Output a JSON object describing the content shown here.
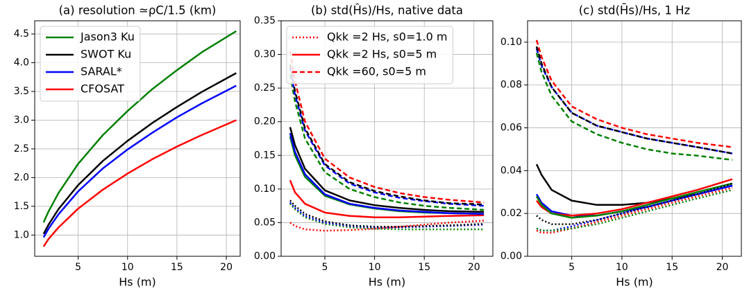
{
  "chart_data": [
    {
      "type": "line",
      "title": "(a) resolution  ≃ρC/1.5 (km)",
      "xlabel": "Hs (m)",
      "x": [
        1.5,
        2,
        3,
        5,
        7.5,
        10,
        12.5,
        15,
        17.5,
        21
      ],
      "xlim": [
        0.6,
        21.4
      ],
      "xticks": [
        5,
        10,
        15,
        20
      ],
      "ylim": [
        0.63,
        4.73
      ],
      "yticks": [
        {
          "value": 1,
          "label": "1.0"
        },
        1.5,
        {
          "value": 2,
          "label": "2.0"
        },
        2.5,
        {
          "value": 3,
          "label": "3.0"
        },
        3.5,
        {
          "value": 4,
          "label": "4.0"
        },
        4.5
      ],
      "grid": true,
      "legend": "upper left",
      "series": [
        {
          "name": "Jason3  Ku",
          "color": "#008000",
          "dash": "solid",
          "values": [
            1.22,
            1.41,
            1.73,
            2.24,
            2.74,
            3.16,
            3.54,
            3.87,
            4.18,
            4.55
          ]
        },
        {
          "name": "SWOT  Ku",
          "color": "#000000",
          "dash": "solid",
          "values": [
            1.02,
            1.18,
            1.45,
            1.87,
            2.29,
            2.64,
            2.95,
            3.23,
            3.49,
            3.82
          ]
        },
        {
          "name": "SARAL*",
          "color": "#0000ff",
          "dash": "solid",
          "values": [
            0.96,
            1.11,
            1.36,
            1.76,
            2.16,
            2.49,
            2.78,
            3.05,
            3.29,
            3.6
          ]
        },
        {
          "name": "CFOSAT",
          "color": "#ff0000",
          "dash": "solid",
          "values": [
            0.8,
            0.93,
            1.13,
            1.46,
            1.79,
            2.07,
            2.32,
            2.54,
            2.74,
            3.0
          ]
        }
      ]
    },
    {
      "type": "line",
      "title": "(b) std(Ĥs)/Hs, native data",
      "xlabel": "Hs (m)",
      "x": [
        1.5,
        2,
        3,
        5,
        7.5,
        10,
        12.5,
        15,
        17.5,
        21
      ],
      "xlim": [
        0.6,
        21.9
      ],
      "xticks": [
        5,
        10,
        15,
        20
      ],
      "ylim": [
        0,
        0.35
      ],
      "yticks": [
        {
          "value": 0,
          "label": "0.00"
        },
        0.05,
        {
          "value": 0.1,
          "label": "0.10"
        },
        0.15,
        {
          "value": 0.2,
          "label": "0.20"
        },
        0.25,
        {
          "value": 0.3,
          "label": "0.30"
        },
        0.35
      ],
      "grid": true,
      "legend": "upper left",
      "series": [
        {
          "name": "Qkk =2 Hs, s0=1.0 m",
          "color": "#ff0000",
          "dash": "dotted",
          "values": [
            0.05,
            0.045,
            0.04,
            0.038,
            0.039,
            0.041,
            0.044,
            0.047,
            0.05,
            0.053
          ]
        },
        {
          "name": "Qkk =2 Hs, s0=5 m",
          "color": "#ff0000",
          "dash": "solid",
          "values": [
            0.113,
            0.095,
            0.078,
            0.065,
            0.06,
            0.058,
            0.058,
            0.059,
            0.06,
            0.061
          ]
        },
        {
          "name": "Qkk =60, s0=5 m",
          "color": "#ff0000",
          "dash": "dashed",
          "values": [
            0.305,
            0.26,
            0.2,
            0.145,
            0.117,
            0.103,
            0.094,
            0.088,
            0.084,
            0.08
          ]
        },
        {
          "color": "#008000",
          "dash": "dashed",
          "values": [
            0.27,
            0.23,
            0.175,
            0.125,
            0.1,
            0.088,
            0.08,
            0.075,
            0.072,
            0.069
          ]
        },
        {
          "color": "#0000ff",
          "dash": "dashed",
          "values": [
            0.28,
            0.24,
            0.187,
            0.135,
            0.108,
            0.095,
            0.087,
            0.082,
            0.078,
            0.075
          ]
        },
        {
          "color": "#000000",
          "dash": "dashed",
          "values": [
            0.285,
            0.245,
            0.19,
            0.137,
            0.11,
            0.097,
            0.089,
            0.083,
            0.079,
            0.077
          ]
        },
        {
          "color": "#008000",
          "dash": "solid",
          "values": [
            0.178,
            0.15,
            0.118,
            0.09,
            0.077,
            0.071,
            0.067,
            0.065,
            0.064,
            0.063
          ]
        },
        {
          "color": "#0000ff",
          "dash": "solid",
          "values": [
            0.183,
            0.155,
            0.122,
            0.092,
            0.078,
            0.072,
            0.068,
            0.066,
            0.064,
            0.063
          ]
        },
        {
          "color": "#000000",
          "dash": "solid",
          "values": [
            0.192,
            0.165,
            0.13,
            0.098,
            0.083,
            0.076,
            0.072,
            0.069,
            0.067,
            0.066
          ]
        },
        {
          "color": "#008000",
          "dash": "dotted",
          "values": [
            0.078,
            0.07,
            0.058,
            0.048,
            0.043,
            0.041,
            0.04,
            0.04,
            0.04,
            0.04
          ]
        },
        {
          "color": "#0000ff",
          "dash": "dotted",
          "values": [
            0.08,
            0.072,
            0.06,
            0.05,
            0.045,
            0.043,
            0.043,
            0.044,
            0.045,
            0.047
          ]
        },
        {
          "color": "#000000",
          "dash": "dotted",
          "values": [
            0.083,
            0.075,
            0.063,
            0.052,
            0.046,
            0.044,
            0.044,
            0.045,
            0.046,
            0.048
          ]
        }
      ]
    },
    {
      "type": "line",
      "title": "(c) std(H̄s)/Hs, 1 Hz",
      "xlabel": "Hs (m)",
      "x": [
        1.5,
        2,
        3,
        5,
        7.5,
        10,
        12.5,
        15,
        17.5,
        21
      ],
      "xlim": [
        0.6,
        21.9
      ],
      "xticks": [
        5,
        10,
        15,
        20
      ],
      "ylim": [
        0,
        0.11
      ],
      "yticks": [
        {
          "value": 0,
          "label": "0.00"
        },
        0.02,
        0.04,
        0.06,
        0.08,
        {
          "value": 0.1,
          "label": "0.10"
        }
      ],
      "grid": true,
      "series": [
        {
          "color": "#ff0000",
          "dash": "dashed",
          "values": [
            0.101,
            0.093,
            0.082,
            0.07,
            0.064,
            0.06,
            0.057,
            0.055,
            0.053,
            0.051
          ]
        },
        {
          "color": "#0000ff",
          "dash": "dashed",
          "values": [
            0.097,
            0.089,
            0.079,
            0.067,
            0.061,
            0.058,
            0.055,
            0.053,
            0.051,
            0.048
          ]
        },
        {
          "color": "#000000",
          "dash": "dashed",
          "values": [
            0.098,
            0.09,
            0.079,
            0.067,
            0.061,
            0.058,
            0.055,
            0.053,
            0.051,
            0.048
          ]
        },
        {
          "color": "#008000",
          "dash": "dashed",
          "values": [
            0.095,
            0.086,
            0.075,
            0.063,
            0.057,
            0.053,
            0.05,
            0.048,
            0.047,
            0.045
          ]
        },
        {
          "color": "#000000",
          "dash": "solid",
          "values": [
            0.043,
            0.038,
            0.031,
            0.026,
            0.024,
            0.024,
            0.025,
            0.027,
            0.029,
            0.033
          ]
        },
        {
          "color": "#0000ff",
          "dash": "solid",
          "values": [
            0.029,
            0.025,
            0.021,
            0.019,
            0.019,
            0.021,
            0.023,
            0.026,
            0.029,
            0.033
          ]
        },
        {
          "color": "#ff0000",
          "dash": "solid",
          "values": [
            0.026,
            0.023,
            0.02,
            0.019,
            0.02,
            0.022,
            0.025,
            0.028,
            0.031,
            0.036
          ]
        },
        {
          "color": "#008000",
          "dash": "solid",
          "values": [
            0.028,
            0.024,
            0.02,
            0.018,
            0.019,
            0.021,
            0.024,
            0.027,
            0.03,
            0.034
          ]
        },
        {
          "color": "#000000",
          "dash": "dotted",
          "values": [
            0.019,
            0.017,
            0.015,
            0.015,
            0.017,
            0.02,
            0.023,
            0.026,
            0.029,
            0.034
          ]
        },
        {
          "color": "#0000ff",
          "dash": "dotted",
          "values": [
            0.013,
            0.012,
            0.012,
            0.014,
            0.017,
            0.02,
            0.023,
            0.026,
            0.029,
            0.033
          ]
        },
        {
          "color": "#ff0000",
          "dash": "dotted",
          "values": [
            0.012,
            0.011,
            0.011,
            0.013,
            0.016,
            0.019,
            0.022,
            0.025,
            0.028,
            0.032
          ]
        },
        {
          "color": "#008000",
          "dash": "dotted",
          "values": [
            0.013,
            0.012,
            0.012,
            0.013,
            0.015,
            0.018,
            0.021,
            0.024,
            0.027,
            0.031
          ]
        }
      ]
    }
  ]
}
